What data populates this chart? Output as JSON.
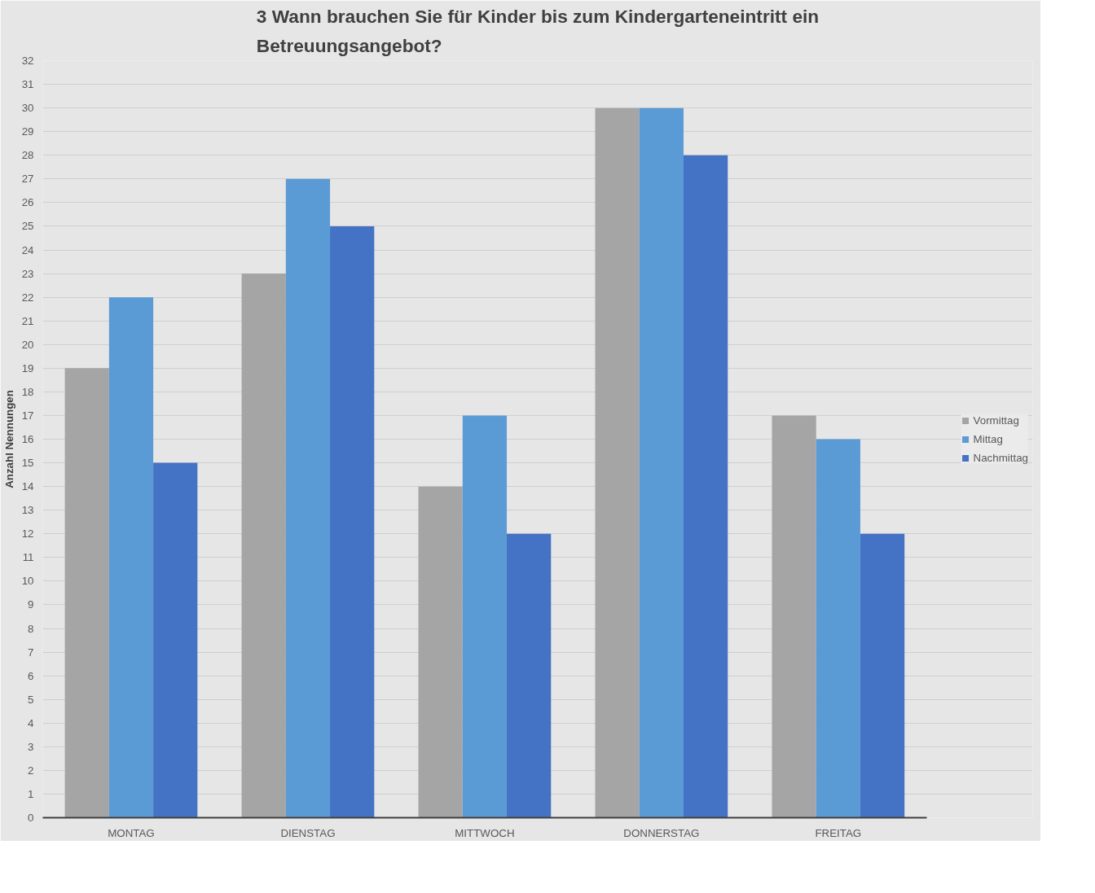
{
  "chart_data": {
    "type": "bar",
    "title": "3 Wann brauchen Sie für Kinder bis zum Kindergarteneintritt ein Betreuungsangebot?",
    "ylabel": "Anzahl Nennungen",
    "categories": [
      "MONTAG",
      "DIENSTAG",
      "MITTWOCH",
      "DONNERSTAG",
      "FREITAG"
    ],
    "series": [
      {
        "name": "Vormittag",
        "color": "#a5a5a5",
        "values": [
          19,
          23,
          14,
          30,
          17
        ]
      },
      {
        "name": "Mittag",
        "color": "#5b9bd5",
        "values": [
          22,
          27,
          17,
          30,
          16
        ]
      },
      {
        "name": "Nachmittag",
        "color": "#4472c4",
        "values": [
          15,
          25,
          12,
          28,
          12
        ]
      }
    ],
    "ylim": [
      0,
      32
    ],
    "yticks": [
      0,
      1,
      2,
      3,
      4,
      5,
      6,
      7,
      8,
      9,
      10,
      11,
      12,
      13,
      14,
      15,
      16,
      17,
      18,
      19,
      20,
      21,
      22,
      23,
      24,
      25,
      26,
      27,
      28,
      29,
      30,
      31,
      32
    ],
    "grid": "y",
    "legend": "right"
  }
}
